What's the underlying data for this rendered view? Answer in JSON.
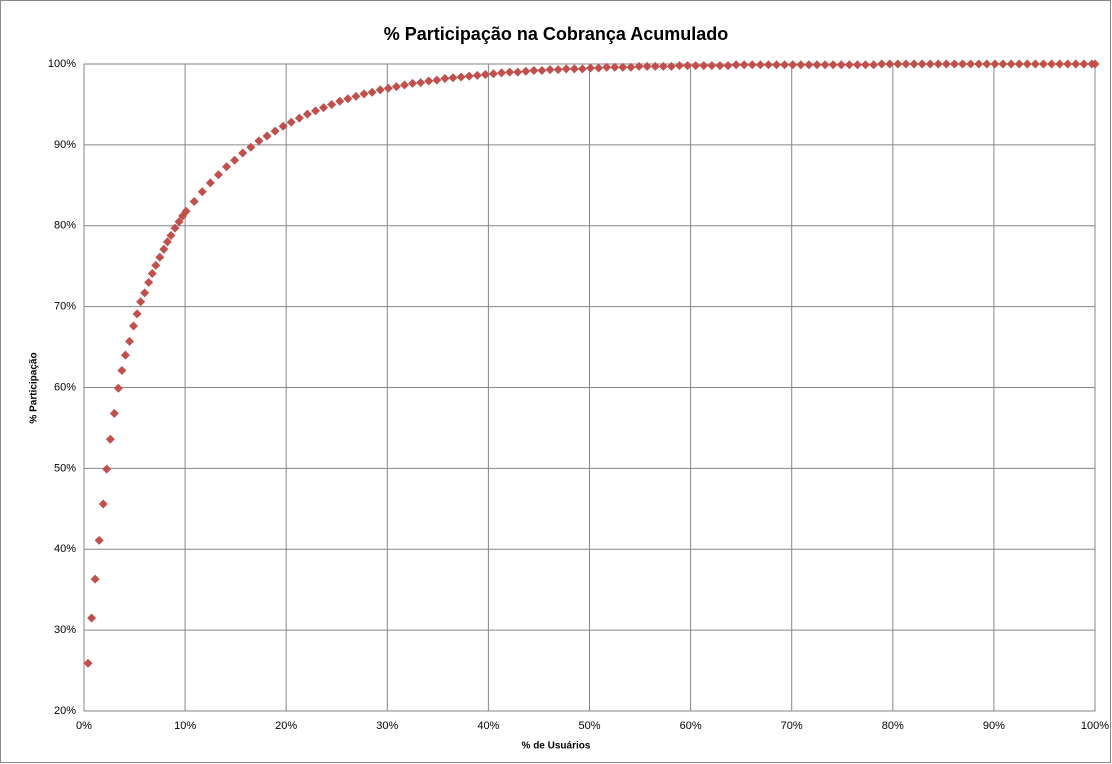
{
  "chart_data": {
    "type": "scatter",
    "title": "% Participação na Cobrança Acumulado",
    "xlabel": "% de Usuários",
    "ylabel": "% Participação",
    "xlim": [
      0,
      100
    ],
    "ylim": [
      20,
      100
    ],
    "xticks": [
      {
        "value": 0,
        "label": "0%"
      },
      {
        "value": 10,
        "label": "10%"
      },
      {
        "value": 20,
        "label": "20%"
      },
      {
        "value": 30,
        "label": "30%"
      },
      {
        "value": 40,
        "label": "40%"
      },
      {
        "value": 50,
        "label": "50%"
      },
      {
        "value": 60,
        "label": "60%"
      },
      {
        "value": 70,
        "label": "70%"
      },
      {
        "value": 80,
        "label": "80%"
      },
      {
        "value": 90,
        "label": "90%"
      },
      {
        "value": 100,
        "label": "100%"
      }
    ],
    "yticks": [
      {
        "value": 20,
        "label": "20%"
      },
      {
        "value": 30,
        "label": "30%"
      },
      {
        "value": 40,
        "label": "40%"
      },
      {
        "value": 50,
        "label": "50%"
      },
      {
        "value": 60,
        "label": "60%"
      },
      {
        "value": 70,
        "label": "70%"
      },
      {
        "value": 80,
        "label": "80%"
      },
      {
        "value": 90,
        "label": "90%"
      },
      {
        "value": 100,
        "label": "100%"
      }
    ],
    "grid": true,
    "series": [
      {
        "color": "#c0504d",
        "x": [
          0.4,
          0.75,
          1.1,
          1.5,
          1.9,
          2.25,
          2.6,
          3.0,
          3.4,
          3.75,
          4.1,
          4.5,
          4.9,
          5.25,
          5.6,
          6.0,
          6.4,
          6.75,
          7.1,
          7.5,
          7.9,
          8.25,
          8.6,
          9.0,
          9.4,
          9.75,
          10.1,
          10.9,
          11.7,
          12.5,
          13.3,
          14.1,
          14.9,
          15.7,
          16.5,
          17.3,
          18.1,
          18.9,
          19.7,
          20.5,
          21.3,
          22.1,
          22.9,
          23.7,
          24.5,
          25.3,
          26.1,
          26.9,
          27.7,
          28.5,
          29.3,
          30.1,
          30.9,
          31.7,
          32.5,
          33.3,
          34.1,
          34.9,
          35.7,
          36.5,
          37.3,
          38.1,
          38.9,
          39.7,
          40.5,
          41.3,
          42.1,
          42.9,
          43.7,
          44.5,
          45.3,
          46.1,
          46.9,
          47.7,
          48.5,
          49.3,
          50.1,
          50.9,
          51.7,
          52.5,
          53.3,
          54.1,
          54.9,
          55.7,
          56.5,
          57.3,
          58.1,
          58.9,
          59.7,
          60.5,
          61.3,
          62.1,
          62.9,
          63.7,
          64.5,
          65.3,
          66.1,
          66.9,
          67.7,
          68.5,
          69.3,
          70.1,
          70.9,
          71.7,
          72.5,
          73.3,
          74.1,
          74.9,
          75.7,
          76.5,
          77.3,
          78.1,
          78.9,
          79.7,
          80.5,
          81.3,
          82.1,
          82.9,
          83.7,
          84.5,
          85.3,
          86.1,
          86.9,
          87.7,
          88.5,
          89.3,
          90.1,
          90.9,
          91.7,
          92.5,
          93.3,
          94.1,
          94.9,
          95.7,
          96.5,
          97.3,
          98.1,
          98.9,
          99.7,
          100
        ],
        "values": [
          25.9,
          31.5,
          36.3,
          41.1,
          45.6,
          49.9,
          53.6,
          56.8,
          59.9,
          62.1,
          64.0,
          65.7,
          67.6,
          69.1,
          70.6,
          71.7,
          73.0,
          74.1,
          75.1,
          76.1,
          77.1,
          78.0,
          78.8,
          79.7,
          80.5,
          81.2,
          81.8,
          83.0,
          84.2,
          85.3,
          86.3,
          87.3,
          88.1,
          89.0,
          89.7,
          90.5,
          91.1,
          91.7,
          92.3,
          92.8,
          93.3,
          93.8,
          94.2,
          94.6,
          95.0,
          95.4,
          95.7,
          96.0,
          96.3,
          96.5,
          96.8,
          97.0,
          97.2,
          97.4,
          97.6,
          97.7,
          97.9,
          98.0,
          98.2,
          98.3,
          98.4,
          98.5,
          98.6,
          98.7,
          98.8,
          98.9,
          99.0,
          99.0,
          99.1,
          99.2,
          99.2,
          99.3,
          99.3,
          99.4,
          99.4,
          99.4,
          99.5,
          99.5,
          99.6,
          99.6,
          99.6,
          99.6,
          99.7,
          99.7,
          99.7,
          99.7,
          99.7,
          99.8,
          99.8,
          99.8,
          99.8,
          99.8,
          99.8,
          99.8,
          99.9,
          99.9,
          99.9,
          99.9,
          99.9,
          99.9,
          99.9,
          99.9,
          99.9,
          99.9,
          99.9,
          99.9,
          99.9,
          99.9,
          99.9,
          99.9,
          99.9,
          99.9,
          100,
          100,
          100,
          100,
          100,
          100,
          100,
          100,
          100,
          100,
          100,
          100,
          100,
          100,
          100,
          100,
          100,
          100,
          100,
          100,
          100,
          100,
          100,
          100,
          100,
          100,
          100,
          100
        ]
      }
    ]
  }
}
